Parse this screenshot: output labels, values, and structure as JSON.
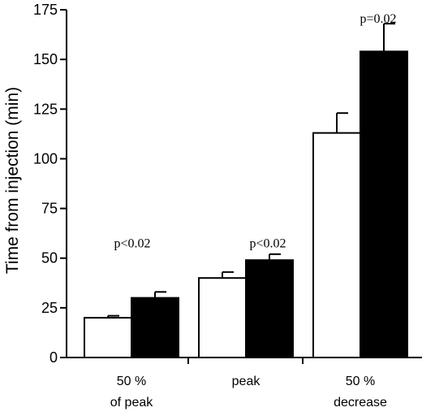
{
  "chart_data": {
    "type": "bar",
    "title": "",
    "xlabel": "",
    "ylabel": "Time from injection (min)",
    "ylim": [
      0,
      175
    ],
    "yticks": [
      0,
      25,
      50,
      75,
      100,
      125,
      150,
      175
    ],
    "grid": false,
    "legend": "none",
    "categories": [
      {
        "line1": "50 %",
        "line2": "of peak"
      },
      {
        "line1": "peak",
        "line2": ""
      },
      {
        "line1": "50 %",
        "line2": "decrease"
      }
    ],
    "series": [
      {
        "color": "#ffffff",
        "values": [
          20,
          40,
          113
        ],
        "errors": [
          1,
          3,
          10
        ]
      },
      {
        "color": "#000000",
        "values": [
          30,
          49,
          154
        ],
        "errors": [
          3,
          3,
          14
        ]
      }
    ],
    "annotations": [
      "p<0.02",
      "p<0.02",
      "p=0.02"
    ]
  }
}
